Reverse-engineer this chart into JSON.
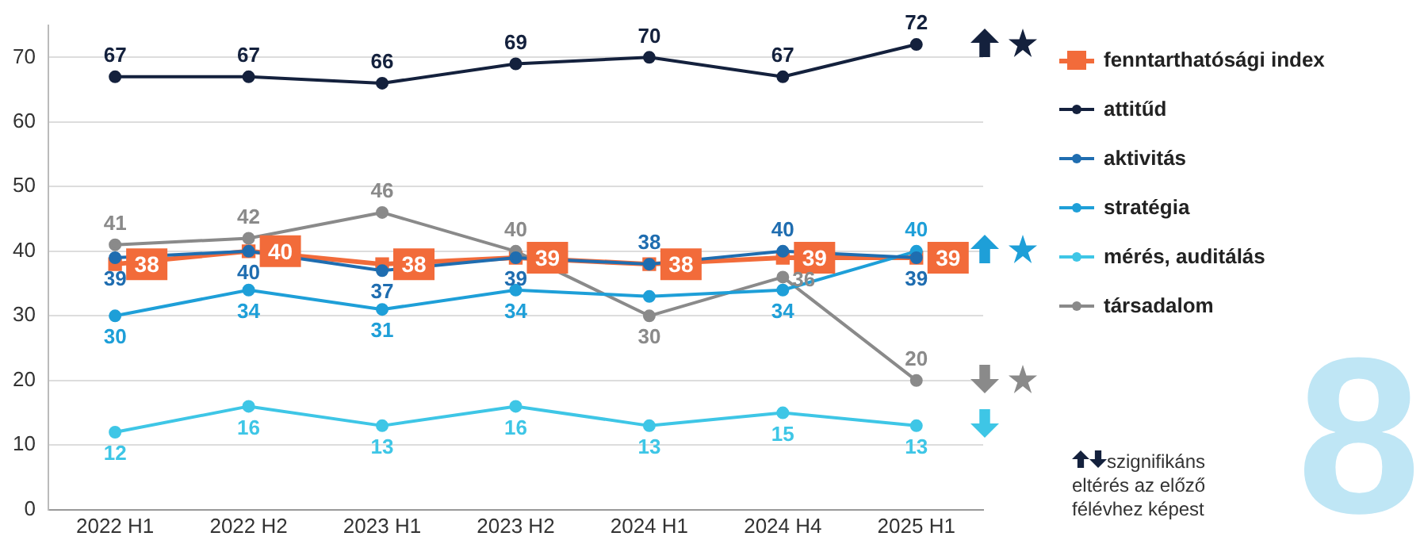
{
  "chart_data": {
    "type": "line",
    "categories": [
      "2022 H1",
      "2022 H2",
      "2023 H1",
      "2023 H2",
      "2024 H1",
      "2024 H4",
      "2025 H1"
    ],
    "ylim": [
      0,
      75
    ],
    "yticks": [
      0,
      10,
      20,
      30,
      40,
      50,
      60,
      70
    ],
    "grid": "y",
    "legend": "right",
    "marker": "circle",
    "line_style": "solid",
    "data_labels": true,
    "series": [
      {
        "name": "fenntarthatósági index",
        "color": "#f26b3a",
        "marker": "square",
        "values": [
          38,
          40,
          38,
          39,
          38,
          39,
          39
        ]
      },
      {
        "name": "attitűd",
        "color": "#14213d",
        "values": [
          67,
          67,
          66,
          69,
          70,
          67,
          72
        ]
      },
      {
        "name": "aktivitás",
        "color": "#1f6db0",
        "values": [
          39,
          40,
          37,
          39,
          38,
          40,
          39
        ]
      },
      {
        "name": "stratégia",
        "color": "#1e9fd8",
        "values": [
          30,
          34,
          31,
          34,
          33,
          34,
          40
        ],
        "value_labels": [
          "30",
          "34",
          "31",
          "34",
          null,
          "34",
          "40"
        ]
      },
      {
        "name": "mérés, auditálás",
        "color": "#3ec6e6",
        "values": [
          12,
          16,
          13,
          16,
          13,
          15,
          13
        ]
      },
      {
        "name": "társadalom",
        "color": "#8a8a8a",
        "values": [
          41,
          42,
          46,
          40,
          30,
          36,
          20
        ]
      }
    ],
    "annotations": [
      "szignifikáns eltérés az előző félévhez képest",
      "8"
    ]
  }
}
